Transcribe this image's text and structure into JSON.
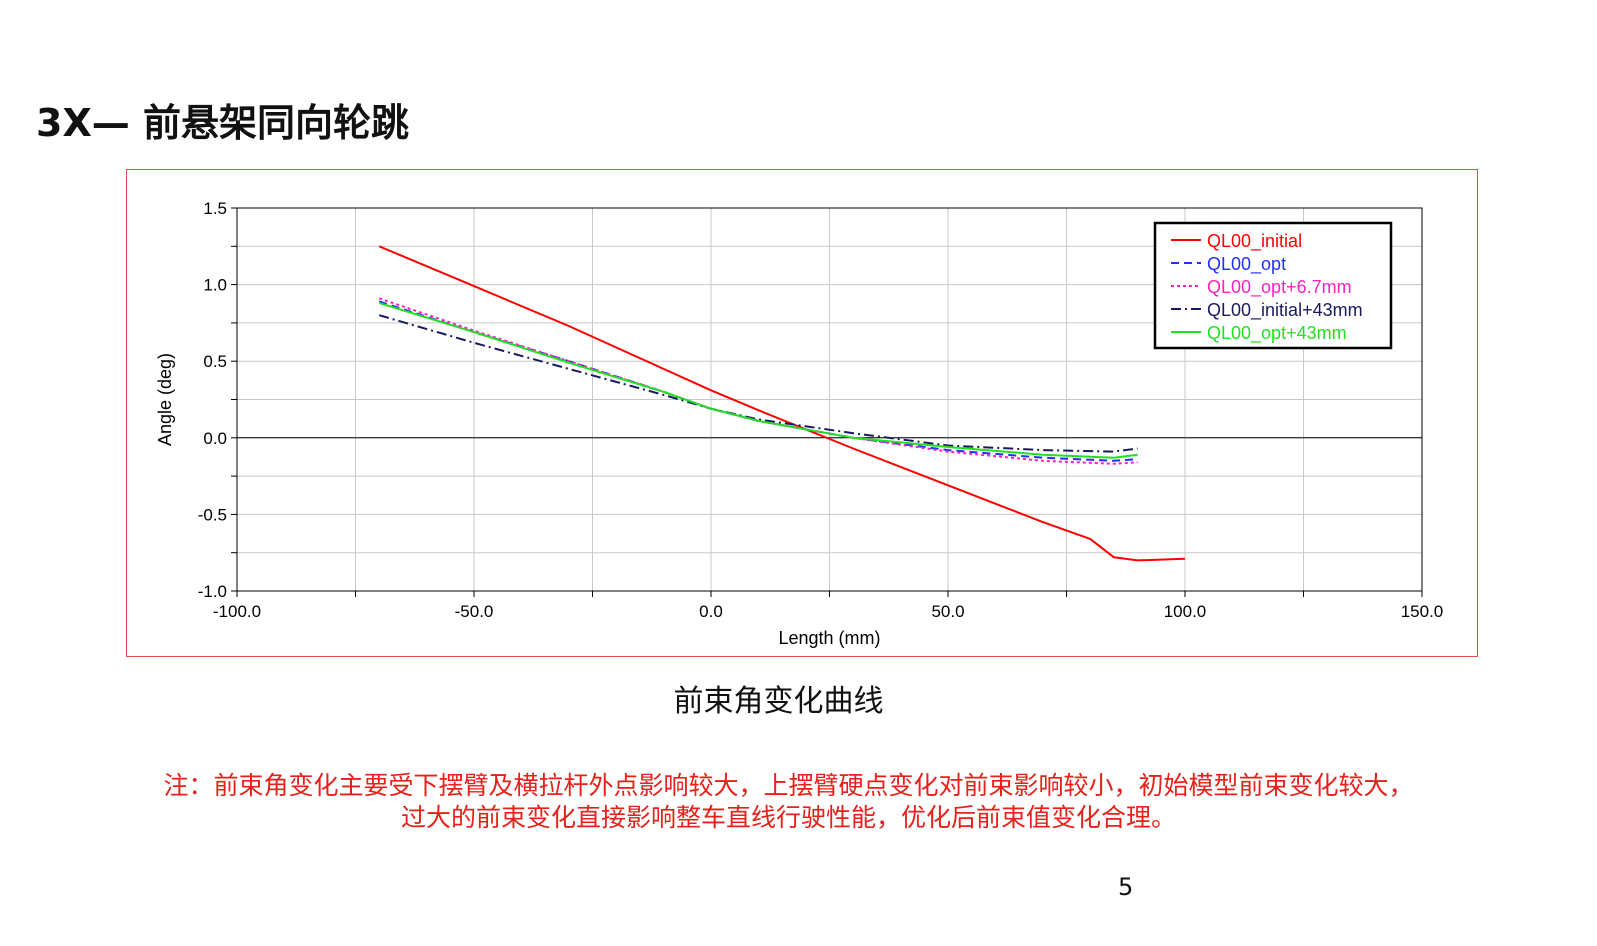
{
  "slide": {
    "title": "3X— 前悬架同向轮跳",
    "caption": "前束角变化曲线",
    "note_line_1": "注：前束角变化主要受下摆臂及横拉杆外点影响较大，上摆臂硬点变化对前束影响较小，初始模型前束变化较大，",
    "note_line_2": "过大的前束变化直接影响整车直线行驶性能，优化后前束值变化合理。",
    "page_number": "5"
  },
  "colors": {
    "frame_border": "#e05050",
    "note_text": "#e8201a",
    "grid": "#c8c8c8"
  },
  "chart_data": {
    "type": "line",
    "title": "",
    "xlabel": "Length (mm)",
    "ylabel": "Angle (deg)",
    "xlim": [
      -100.0,
      150.0
    ],
    "ylim": [
      -1.0,
      1.5
    ],
    "x_ticks": [
      -100.0,
      -50.0,
      0.0,
      50.0,
      100.0,
      150.0
    ],
    "x_tick_labels": [
      "-100.0",
      "-50.0",
      "0.0",
      "50.0",
      "100.0",
      "150.0"
    ],
    "y_ticks": [
      -1.0,
      -0.5,
      0.0,
      0.5,
      1.0,
      1.5
    ],
    "y_tick_labels": [
      "-1.0",
      "-0.5",
      "0.0",
      "0.5",
      "1.0",
      "1.5"
    ],
    "grid": true,
    "legend_position": "top-right",
    "series": [
      {
        "name": "QL00_initial",
        "color": "#ff0000",
        "dash": "solid",
        "points": [
          [
            -70,
            1.25
          ],
          [
            -50,
            0.99
          ],
          [
            -30,
            0.73
          ],
          [
            -10,
            0.45
          ],
          [
            0,
            0.31
          ],
          [
            10,
            0.18
          ],
          [
            30,
            -0.07
          ],
          [
            50,
            -0.31
          ],
          [
            70,
            -0.55
          ],
          [
            80,
            -0.66
          ],
          [
            85,
            -0.78
          ],
          [
            90,
            -0.8
          ],
          [
            100,
            -0.79
          ]
        ]
      },
      {
        "name": "QL00_opt",
        "color": "#2030ff",
        "dash": "dashed",
        "points": [
          [
            -70,
            0.89
          ],
          [
            -50,
            0.69
          ],
          [
            -30,
            0.5
          ],
          [
            -10,
            0.3
          ],
          [
            0,
            0.19
          ],
          [
            10,
            0.11
          ],
          [
            30,
            0.0
          ],
          [
            50,
            -0.08
          ],
          [
            70,
            -0.13
          ],
          [
            85,
            -0.15
          ],
          [
            90,
            -0.14
          ]
        ]
      },
      {
        "name": "QL00_opt+6.7mm",
        "color": "#ff20c0",
        "dash": "dotted",
        "points": [
          [
            -70,
            0.91
          ],
          [
            -50,
            0.7
          ],
          [
            -30,
            0.5
          ],
          [
            -10,
            0.3
          ],
          [
            0,
            0.19
          ],
          [
            10,
            0.11
          ],
          [
            30,
            0.0
          ],
          [
            50,
            -0.09
          ],
          [
            70,
            -0.15
          ],
          [
            85,
            -0.17
          ],
          [
            90,
            -0.16
          ]
        ]
      },
      {
        "name": "QL00_initial+43mm",
        "color": "#1a1a60",
        "dash": "dashdot",
        "points": [
          [
            -70,
            0.8
          ],
          [
            -50,
            0.62
          ],
          [
            -30,
            0.45
          ],
          [
            -10,
            0.28
          ],
          [
            0,
            0.19
          ],
          [
            10,
            0.12
          ],
          [
            30,
            0.03
          ],
          [
            50,
            -0.05
          ],
          [
            70,
            -0.08
          ],
          [
            85,
            -0.09
          ],
          [
            90,
            -0.07
          ]
        ]
      },
      {
        "name": "QL00_opt+43mm",
        "color": "#20e020",
        "dash": "solid",
        "points": [
          [
            -70,
            0.88
          ],
          [
            -50,
            0.69
          ],
          [
            -30,
            0.49
          ],
          [
            -10,
            0.3
          ],
          [
            0,
            0.19
          ],
          [
            10,
            0.11
          ],
          [
            30,
            0.0
          ],
          [
            50,
            -0.06
          ],
          [
            70,
            -0.11
          ],
          [
            85,
            -0.13
          ],
          [
            90,
            -0.11
          ]
        ]
      }
    ]
  }
}
